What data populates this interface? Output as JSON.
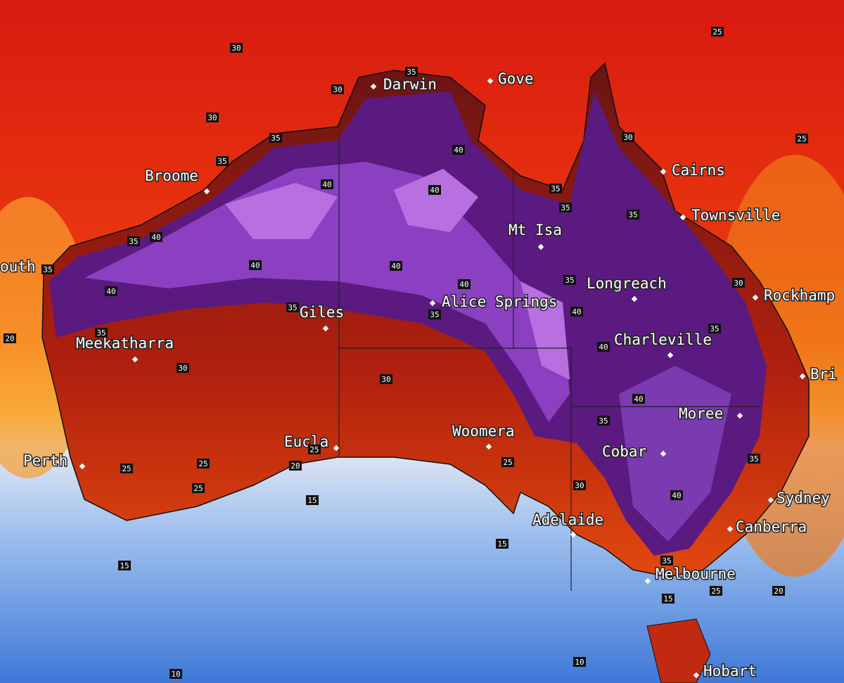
{
  "cities": [
    {
      "label": "Darwin"
    },
    {
      "label": "Gove"
    },
    {
      "label": "Cairns"
    },
    {
      "label": "Broome"
    },
    {
      "label": "Townsville"
    },
    {
      "label": "Mt Isa"
    },
    {
      "label": "Longreach"
    },
    {
      "label": "Rockhamp"
    },
    {
      "label": "outh"
    },
    {
      "label": "Alice Springs"
    },
    {
      "label": "Giles"
    },
    {
      "label": "Meekatharra"
    },
    {
      "label": "Charleville"
    },
    {
      "label": "Bri"
    },
    {
      "label": "Moree"
    },
    {
      "label": "Woomera"
    },
    {
      "label": "Eucla"
    },
    {
      "label": "Perth"
    },
    {
      "label": "Cobar"
    },
    {
      "label": "Sydney"
    },
    {
      "label": "Adelaide"
    },
    {
      "label": "Canberra"
    },
    {
      "label": "Melbourne"
    },
    {
      "label": "Hobart"
    }
  ],
  "contours": [
    30,
    25,
    30,
    35,
    30,
    35,
    40,
    35,
    40,
    40,
    30,
    35,
    35,
    25,
    35,
    40,
    35,
    40,
    40,
    40,
    40,
    35,
    35,
    35,
    35,
    30,
    40,
    35,
    20,
    35,
    40,
    30,
    30,
    40,
    35,
    25,
    25,
    25,
    20,
    25,
    35,
    25,
    30,
    40,
    15,
    15,
    15,
    35,
    25,
    20,
    15,
    10,
    10
  ]
}
